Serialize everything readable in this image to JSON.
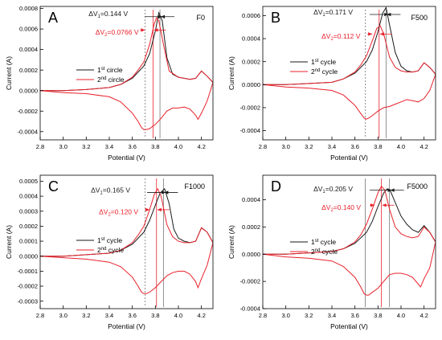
{
  "figure": {
    "colors": {
      "black": "#1a1a1a",
      "red": "#e8212b",
      "gray": "#777777"
    }
  },
  "chart_data": [
    {
      "type": "line",
      "panel_letter": "A",
      "sample_label": "F0",
      "xlabel": "Potential (V)",
      "ylabel": "Current (A)",
      "xlim": [
        2.8,
        4.3
      ],
      "ylim": [
        -0.00048,
        0.00082
      ],
      "x_ticks": [
        2.8,
        3.0,
        3.2,
        3.4,
        3.6,
        3.8,
        4.0,
        4.2
      ],
      "x_tick_labels": [
        "2.8",
        "3.0",
        "3.2",
        "3.4",
        "3.6",
        "3.8",
        "4.0",
        "4.2"
      ],
      "y_ticks": [
        -0.0004,
        -0.0002,
        0.0,
        0.0002,
        0.0004,
        0.0006,
        0.0008
      ],
      "y_tick_labels": [
        "-0.0004",
        "-0.0002",
        "0.0000",
        "0.0002",
        "0.0004",
        "0.0006",
        "0.0008"
      ],
      "grid": false,
      "legend_position": "center-left",
      "series": [
        {
          "name_main": "1",
          "name_sup": "st",
          "name_rest": " circle",
          "color": "#1a1a1a",
          "x": [
            2.8,
            3.0,
            3.2,
            3.4,
            3.5,
            3.6,
            3.7,
            3.75,
            3.8,
            3.83,
            3.86,
            3.9,
            3.95,
            4.0,
            4.05,
            4.1,
            4.15,
            4.2,
            4.25,
            4.3
          ],
          "y": [
            0.0,
            0.0,
            1e-05,
            3e-05,
            6e-05,
            0.00012,
            0.00024,
            0.00036,
            0.00058,
            0.00076,
            0.00068,
            0.00032,
            0.00016,
            0.00013,
            0.00012,
            0.00011,
            0.00012,
            0.00019,
            0.00014,
            8e-05
          ]
        },
        {
          "name_main": "2",
          "name_sup": "nd",
          "name_rest": " circle",
          "color": "#e8212b",
          "x": [
            2.8,
            3.0,
            3.2,
            3.4,
            3.5,
            3.6,
            3.65,
            3.7,
            3.75,
            3.79,
            3.81,
            3.83,
            3.87,
            3.92,
            4.0,
            4.05,
            4.1,
            4.15,
            4.2,
            4.25,
            4.3
          ],
          "y": [
            0.0,
            0.0,
            1e-05,
            3e-05,
            6e-05,
            0.00013,
            0.0002,
            0.00028,
            0.00045,
            0.00065,
            0.00071,
            0.00068,
            0.00045,
            0.00019,
            0.00013,
            0.00012,
            0.00011,
            0.00012,
            0.00019,
            0.00014,
            8e-05
          ]
        },
        {
          "name_main": "",
          "name_sup": "",
          "name_rest": "",
          "color": "#e8212b",
          "closed_loop": true,
          "x": [
            4.3,
            4.25,
            4.2,
            4.17,
            4.15,
            4.1,
            4.05,
            4.0,
            3.95,
            3.9,
            3.85,
            3.8,
            3.75,
            3.72,
            3.7,
            3.68,
            3.65,
            3.6,
            3.5,
            3.4,
            3.2,
            3.0,
            2.8
          ],
          "y": [
            8e-05,
            -0.0001,
            -0.00022,
            -0.00028,
            -0.00024,
            -0.00018,
            -0.00016,
            -0.00017,
            -0.00017,
            -0.0002,
            -0.00027,
            -0.00033,
            -0.00037,
            -0.00038,
            -0.00038,
            -0.00036,
            -0.0003,
            -0.00022,
            -0.00011,
            -6e-05,
            -3e-05,
            -2e-05,
            0.0
          ]
        }
      ],
      "vlines": [
        {
          "x": 3.71,
          "color": "#777777",
          "dashed": true
        },
        {
          "x": 3.84,
          "color": "#777777",
          "dashed": false
        },
        {
          "x": 3.78,
          "color": "#e8212b",
          "dashed": false
        }
      ],
      "annotations": [
        {
          "delta": "ΔV",
          "sub": "1",
          "value": "=0.144 V",
          "color": "#1a1a1a",
          "ax": 3.86,
          "ay": 0.00072,
          "tx": 3.22,
          "ty": 0.00075
        },
        {
          "delta": "ΔV",
          "sub": "2",
          "value": "=0.0766 V",
          "color": "#e8212b",
          "ax": 3.71,
          "ay": 0.00059,
          "tx": 3.28,
          "ty": 0.00057
        }
      ]
    },
    {
      "type": "line",
      "panel_letter": "B",
      "sample_label": "F500",
      "xlabel": "Potential (V)",
      "ylabel": "Current (A)",
      "xlim": [
        2.8,
        4.3
      ],
      "ylim": [
        -0.00048,
        0.00068
      ],
      "x_ticks": [
        2.8,
        3.0,
        3.2,
        3.4,
        3.6,
        3.8,
        4.0,
        4.2
      ],
      "x_tick_labels": [
        "2.8",
        "3.0",
        "3.2",
        "3.4",
        "3.6",
        "3.8",
        "4.0",
        "4.2"
      ],
      "y_ticks": [
        -0.0004,
        -0.0002,
        0.0,
        0.0002,
        0.0004,
        0.0006
      ],
      "y_tick_labels": [
        "-0.0004",
        "-0.0002",
        "0.0000",
        "0.0002",
        "0.0004",
        "0.0006"
      ],
      "grid": false,
      "legend_position": "center-left",
      "series": [
        {
          "name_main": "1",
          "name_sup": "st",
          "name_rest": " cycle",
          "color": "#1a1a1a",
          "x": [
            2.8,
            3.0,
            3.2,
            3.4,
            3.5,
            3.6,
            3.7,
            3.75,
            3.8,
            3.84,
            3.87,
            3.9,
            3.95,
            4.0,
            4.05,
            4.1,
            4.15,
            4.2,
            4.25,
            4.3
          ],
          "y": [
            0.0,
            0.0,
            1e-05,
            2e-05,
            5e-05,
            0.0001,
            0.0002,
            0.0003,
            0.00046,
            0.00062,
            0.00067,
            0.00052,
            0.00028,
            0.00016,
            0.00012,
            0.00011,
            0.00012,
            0.00019,
            0.00015,
            9e-05
          ]
        },
        {
          "name_main": "2",
          "name_sup": "nd",
          "name_rest": " cycle",
          "color": "#e8212b",
          "x": [
            2.8,
            3.0,
            3.2,
            3.4,
            3.5,
            3.6,
            3.65,
            3.7,
            3.75,
            3.79,
            3.82,
            3.85,
            3.9,
            3.95,
            4.0,
            4.05,
            4.1,
            4.15,
            4.2,
            4.25,
            4.3
          ],
          "y": [
            0.0,
            0.0,
            1e-05,
            2e-05,
            5e-05,
            0.00011,
            0.00017,
            0.00025,
            0.00038,
            0.00049,
            0.00051,
            0.00044,
            0.00024,
            0.00015,
            0.00012,
            0.00011,
            0.00011,
            0.00012,
            0.00019,
            0.00015,
            9e-05
          ]
        },
        {
          "name_main": "",
          "name_sup": "",
          "name_rest": "",
          "color": "#e8212b",
          "closed_loop": true,
          "x": [
            4.3,
            4.25,
            4.2,
            4.15,
            4.1,
            4.05,
            4.0,
            3.95,
            3.9,
            3.85,
            3.8,
            3.75,
            3.72,
            3.7,
            3.68,
            3.65,
            3.6,
            3.5,
            3.4,
            3.2,
            3.0,
            2.8
          ],
          "y": [
            9e-05,
            -5e-05,
            -0.00012,
            -0.00015,
            -0.00014,
            -0.00013,
            -0.00015,
            -0.00017,
            -0.00019,
            -0.0002,
            -0.00023,
            -0.00027,
            -0.00029,
            -0.0003,
            -0.00029,
            -0.00025,
            -0.00018,
            -9e-05,
            -5e-05,
            -3e-05,
            -2e-05,
            0.0
          ]
        }
      ],
      "vlines": [
        {
          "x": 3.69,
          "color": "#777777",
          "dashed": true
        },
        {
          "x": 3.87,
          "color": "#777777",
          "dashed": false
        },
        {
          "x": 3.81,
          "color": "#e8212b",
          "dashed": false
        }
      ],
      "annotations": [
        {
          "delta": "ΔV",
          "sub": "1",
          "value": "=0.171 V",
          "color": "#1a1a1a",
          "ax": 3.89,
          "ay": 0.00061,
          "tx": 3.24,
          "ty": 0.00063
        },
        {
          "delta": "ΔV",
          "sub": "2",
          "value": "=0.112 V",
          "color": "#e8212b",
          "ax": 3.75,
          "ay": 0.00044,
          "tx": 3.31,
          "ty": 0.00042
        }
      ]
    },
    {
      "type": "line",
      "panel_letter": "C",
      "sample_label": "F1000",
      "xlabel": "Potential (V)",
      "ylabel": "Current (A)",
      "xlim": [
        2.8,
        4.3
      ],
      "ylim": [
        -0.00035,
        0.00054
      ],
      "x_ticks": [
        2.8,
        3.0,
        3.2,
        3.4,
        3.6,
        3.8,
        4.0,
        4.2
      ],
      "x_tick_labels": [
        "2.8",
        "3.0",
        "3.2",
        "3.4",
        "3.6",
        "3.8",
        "4.0",
        "4.2"
      ],
      "y_ticks": [
        -0.0003,
        -0.0002,
        -0.0001,
        0.0,
        0.0001,
        0.0002,
        0.0003,
        0.0004,
        0.0005
      ],
      "y_tick_labels": [
        "-0.0003",
        "-0.0002",
        "-0.0001",
        "0.0000",
        "0.0001",
        "0.0002",
        "0.0003",
        "0.0004",
        "0.0005"
      ],
      "grid": false,
      "legend_position": "center-left",
      "series": [
        {
          "name_main": "1",
          "name_sup": "st",
          "name_rest": " cycle",
          "color": "#1a1a1a",
          "x": [
            2.8,
            3.0,
            3.2,
            3.4,
            3.5,
            3.6,
            3.7,
            3.75,
            3.8,
            3.84,
            3.88,
            3.92,
            3.96,
            4.0,
            4.05,
            4.1,
            4.15,
            4.2,
            4.25,
            4.3
          ],
          "y": [
            0.0,
            0.0,
            1e-05,
            2e-05,
            4e-05,
            8e-05,
            0.00016,
            0.00024,
            0.00034,
            0.00042,
            0.00045,
            0.00035,
            0.00018,
            0.00012,
            0.0001,
            9e-05,
            0.0001,
            0.00019,
            0.00016,
            9e-05
          ]
        },
        {
          "name_main": "2",
          "name_sup": "nd",
          "name_rest": " cycle",
          "color": "#e8212b",
          "x": [
            2.8,
            3.0,
            3.2,
            3.4,
            3.5,
            3.6,
            3.65,
            3.7,
            3.75,
            3.79,
            3.82,
            3.85,
            3.9,
            3.95,
            4.0,
            4.05,
            4.1,
            4.15,
            4.2,
            4.25,
            4.3
          ],
          "y": [
            0.0,
            0.0,
            1e-05,
            2e-05,
            4e-05,
            9e-05,
            0.00014,
            0.0002,
            0.00031,
            0.00041,
            0.00045,
            0.0004,
            0.00021,
            0.00013,
            0.0001,
            9e-05,
            9e-05,
            0.0001,
            0.00019,
            0.00016,
            9e-05
          ]
        },
        {
          "name_main": "",
          "name_sup": "",
          "name_rest": "",
          "color": "#e8212b",
          "closed_loop": true,
          "x": [
            4.3,
            4.25,
            4.2,
            4.17,
            4.15,
            4.1,
            4.05,
            4.0,
            3.95,
            3.9,
            3.85,
            3.8,
            3.75,
            3.72,
            3.7,
            3.68,
            3.65,
            3.6,
            3.5,
            3.4,
            3.2,
            3.0,
            2.8
          ],
          "y": [
            9e-05,
            -6e-05,
            -0.00015,
            -0.00021,
            -0.00017,
            -0.00012,
            -0.0001,
            -0.0001,
            -0.00011,
            -0.00013,
            -0.00017,
            -0.00021,
            -0.00024,
            -0.00025,
            -0.00025,
            -0.00024,
            -0.0002,
            -0.00014,
            -7e-05,
            -4e-05,
            -2e-05,
            -1e-05,
            0.0
          ]
        }
      ],
      "vlines": [
        {
          "x": 3.71,
          "color": "#777777",
          "dashed": true
        },
        {
          "x": 3.87,
          "color": "#777777",
          "dashed": false
        },
        {
          "x": 3.81,
          "color": "#e8212b",
          "dashed": false
        }
      ],
      "annotations": [
        {
          "delta": "ΔV",
          "sub": "1",
          "value": "=0.165 V",
          "color": "#1a1a1a",
          "ax": 3.89,
          "ay": 0.000425,
          "tx": 3.24,
          "ty": 0.00044
        },
        {
          "delta": "ΔV",
          "sub": "2",
          "value": "=0.120 V",
          "color": "#e8212b",
          "ax": 3.75,
          "ay": 0.00031,
          "tx": 3.31,
          "ty": 0.000295
        }
      ]
    },
    {
      "type": "line",
      "panel_letter": "D",
      "sample_label": "F5000",
      "xlabel": "Potential (V)",
      "ylabel": "Current (A)",
      "xlim": [
        2.8,
        4.3
      ],
      "ylim": [
        -0.0004,
        0.00058
      ],
      "x_ticks": [
        2.8,
        3.0,
        3.2,
        3.4,
        3.6,
        3.8,
        4.0,
        4.2
      ],
      "x_tick_labels": [
        "2.8",
        "3.0",
        "3.2",
        "3.4",
        "3.6",
        "3.8",
        "4.0",
        "4.2"
      ],
      "y_ticks": [
        -0.0004,
        -0.0002,
        0.0,
        0.0002,
        0.0004
      ],
      "y_tick_labels": [
        "-0.0004",
        "-0.0002",
        "0.0000",
        "0.0002",
        "0.0004"
      ],
      "grid": false,
      "legend_position": "center-left",
      "series": [
        {
          "name_main": "1",
          "name_sup": "st",
          "name_rest": " cycle",
          "color": "#1a1a1a",
          "x": [
            2.8,
            3.0,
            3.2,
            3.4,
            3.5,
            3.6,
            3.7,
            3.75,
            3.8,
            3.85,
            3.88,
            3.91,
            3.95,
            4.0,
            4.05,
            4.1,
            4.15,
            4.2,
            4.25,
            4.3
          ],
          "y": [
            0.0,
            0.0,
            1e-05,
            2e-05,
            4e-05,
            8e-05,
            0.00016,
            0.00024,
            0.00035,
            0.00045,
            0.00048,
            0.00046,
            0.00038,
            0.00028,
            0.00022,
            0.00018,
            0.00016,
            0.00021,
            0.00016,
            9e-05
          ]
        },
        {
          "name_main": "2",
          "name_sup": "nd",
          "name_rest": " cycle",
          "color": "#e8212b",
          "x": [
            2.8,
            3.0,
            3.2,
            3.4,
            3.5,
            3.6,
            3.65,
            3.7,
            3.75,
            3.8,
            3.83,
            3.86,
            3.9,
            3.95,
            4.0,
            4.05,
            4.1,
            4.15,
            4.2,
            4.25,
            4.3
          ],
          "y": [
            0.0,
            0.0,
            1e-05,
            2e-05,
            4e-05,
            9e-05,
            0.00014,
            0.00022,
            0.00033,
            0.00045,
            0.0005,
            0.00047,
            0.00033,
            0.0002,
            0.00015,
            0.00013,
            0.00012,
            0.00013,
            0.0002,
            0.00016,
            9e-05
          ]
        },
        {
          "name_main": "",
          "name_sup": "",
          "name_rest": "",
          "color": "#e8212b",
          "closed_loop": true,
          "x": [
            4.3,
            4.25,
            4.2,
            4.17,
            4.15,
            4.1,
            4.05,
            4.0,
            3.95,
            3.9,
            3.85,
            3.8,
            3.75,
            3.72,
            3.7,
            3.68,
            3.65,
            3.6,
            3.5,
            3.4,
            3.2,
            3.0,
            2.8
          ],
          "y": [
            9e-05,
            -0.0001,
            -0.00018,
            -0.00024,
            -0.00022,
            -0.00017,
            -0.00015,
            -0.00014,
            -0.00014,
            -0.00015,
            -0.0002,
            -0.00025,
            -0.00028,
            -0.0003,
            -0.0003,
            -0.00029,
            -0.00024,
            -0.00017,
            -9e-05,
            -5e-05,
            -3e-05,
            -2e-05,
            0.0
          ]
        }
      ],
      "vlines": [
        {
          "x": 3.69,
          "color": "#777777",
          "dashed": false
        },
        {
          "x": 3.9,
          "color": "#777777",
          "dashed": false
        },
        {
          "x": 3.83,
          "color": "#e8212b",
          "dashed": false
        }
      ],
      "annotations": [
        {
          "delta": "ΔV",
          "sub": "1",
          "value": "=0.205 V",
          "color": "#1a1a1a",
          "ax": 3.92,
          "ay": 0.00047,
          "tx": 3.24,
          "ty": 0.00048
        },
        {
          "delta": "ΔV",
          "sub": "2",
          "value": "=0.140 V",
          "color": "#e8212b",
          "ax": 3.77,
          "ay": 0.00036,
          "tx": 3.31,
          "ty": 0.000345
        }
      ]
    }
  ]
}
